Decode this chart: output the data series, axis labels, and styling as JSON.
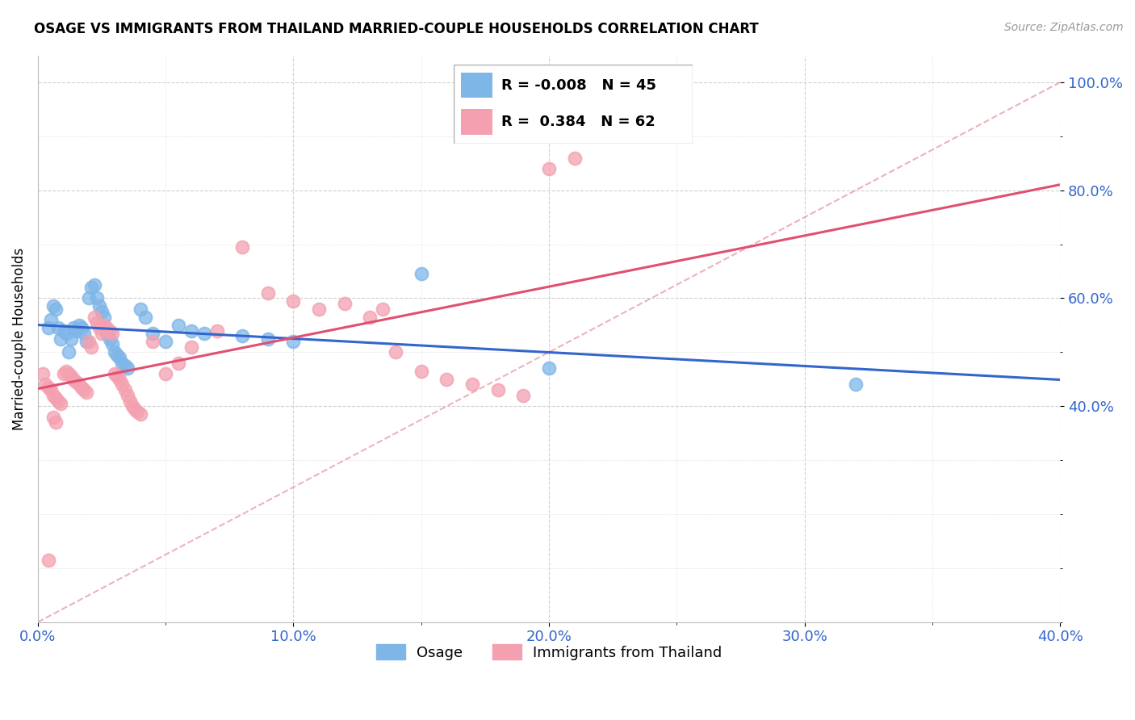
{
  "title": "OSAGE VS IMMIGRANTS FROM THAILAND MARRIED-COUPLE HOUSEHOLDS CORRELATION CHART",
  "source": "Source: ZipAtlas.com",
  "ylabel": "Married-couple Households",
  "xlim": [
    0.0,
    0.4
  ],
  "ylim": [
    0.0,
    1.05
  ],
  "legend_r_osage": "-0.008",
  "legend_n_osage": "45",
  "legend_r_thailand": "0.384",
  "legend_n_thailand": "62",
  "osage_color": "#7EB6E8",
  "thailand_color": "#F4A0B0",
  "trend_osage_color": "#3366CC",
  "trend_thailand_color": "#E05070",
  "diagonal_color": "#E8A0A8",
  "grid_color": "#CCCCCC",
  "axis_label_color": "#3366CC",
  "osage_points": [
    [
      0.004,
      0.545
    ],
    [
      0.005,
      0.56
    ],
    [
      0.006,
      0.585
    ],
    [
      0.007,
      0.58
    ],
    [
      0.008,
      0.545
    ],
    [
      0.009,
      0.525
    ],
    [
      0.01,
      0.54
    ],
    [
      0.011,
      0.535
    ],
    [
      0.012,
      0.5
    ],
    [
      0.013,
      0.525
    ],
    [
      0.014,
      0.545
    ],
    [
      0.015,
      0.54
    ],
    [
      0.016,
      0.55
    ],
    [
      0.017,
      0.545
    ],
    [
      0.018,
      0.535
    ],
    [
      0.019,
      0.52
    ],
    [
      0.02,
      0.6
    ],
    [
      0.021,
      0.62
    ],
    [
      0.022,
      0.625
    ],
    [
      0.023,
      0.6
    ],
    [
      0.024,
      0.585
    ],
    [
      0.025,
      0.575
    ],
    [
      0.026,
      0.565
    ],
    [
      0.027,
      0.535
    ],
    [
      0.028,
      0.525
    ],
    [
      0.029,
      0.515
    ],
    [
      0.03,
      0.5
    ],
    [
      0.031,
      0.495
    ],
    [
      0.032,
      0.49
    ],
    [
      0.033,
      0.48
    ],
    [
      0.034,
      0.475
    ],
    [
      0.035,
      0.47
    ],
    [
      0.04,
      0.58
    ],
    [
      0.042,
      0.565
    ],
    [
      0.045,
      0.535
    ],
    [
      0.05,
      0.52
    ],
    [
      0.055,
      0.55
    ],
    [
      0.06,
      0.54
    ],
    [
      0.065,
      0.535
    ],
    [
      0.08,
      0.53
    ],
    [
      0.09,
      0.525
    ],
    [
      0.1,
      0.52
    ],
    [
      0.15,
      0.645
    ],
    [
      0.2,
      0.47
    ],
    [
      0.32,
      0.44
    ]
  ],
  "thailand_points": [
    [
      0.002,
      0.46
    ],
    [
      0.003,
      0.44
    ],
    [
      0.004,
      0.435
    ],
    [
      0.005,
      0.43
    ],
    [
      0.006,
      0.42
    ],
    [
      0.007,
      0.415
    ],
    [
      0.008,
      0.41
    ],
    [
      0.009,
      0.405
    ],
    [
      0.01,
      0.46
    ],
    [
      0.011,
      0.465
    ],
    [
      0.012,
      0.46
    ],
    [
      0.013,
      0.455
    ],
    [
      0.014,
      0.45
    ],
    [
      0.015,
      0.445
    ],
    [
      0.016,
      0.44
    ],
    [
      0.017,
      0.435
    ],
    [
      0.018,
      0.43
    ],
    [
      0.019,
      0.425
    ],
    [
      0.02,
      0.52
    ],
    [
      0.021,
      0.51
    ],
    [
      0.022,
      0.565
    ],
    [
      0.023,
      0.555
    ],
    [
      0.024,
      0.545
    ],
    [
      0.025,
      0.535
    ],
    [
      0.026,
      0.55
    ],
    [
      0.027,
      0.545
    ],
    [
      0.028,
      0.54
    ],
    [
      0.029,
      0.535
    ],
    [
      0.03,
      0.46
    ],
    [
      0.031,
      0.455
    ],
    [
      0.032,
      0.45
    ],
    [
      0.033,
      0.44
    ],
    [
      0.034,
      0.43
    ],
    [
      0.035,
      0.42
    ],
    [
      0.036,
      0.41
    ],
    [
      0.037,
      0.4
    ],
    [
      0.038,
      0.395
    ],
    [
      0.039,
      0.39
    ],
    [
      0.04,
      0.385
    ],
    [
      0.045,
      0.52
    ],
    [
      0.05,
      0.46
    ],
    [
      0.055,
      0.48
    ],
    [
      0.06,
      0.51
    ],
    [
      0.07,
      0.54
    ],
    [
      0.08,
      0.695
    ],
    [
      0.09,
      0.61
    ],
    [
      0.1,
      0.595
    ],
    [
      0.11,
      0.58
    ],
    [
      0.12,
      0.59
    ],
    [
      0.13,
      0.565
    ],
    [
      0.135,
      0.58
    ],
    [
      0.14,
      0.5
    ],
    [
      0.15,
      0.465
    ],
    [
      0.16,
      0.45
    ],
    [
      0.17,
      0.44
    ],
    [
      0.18,
      0.43
    ],
    [
      0.19,
      0.42
    ],
    [
      0.2,
      0.84
    ],
    [
      0.21,
      0.86
    ],
    [
      0.004,
      0.115
    ],
    [
      0.006,
      0.38
    ],
    [
      0.007,
      0.37
    ]
  ]
}
